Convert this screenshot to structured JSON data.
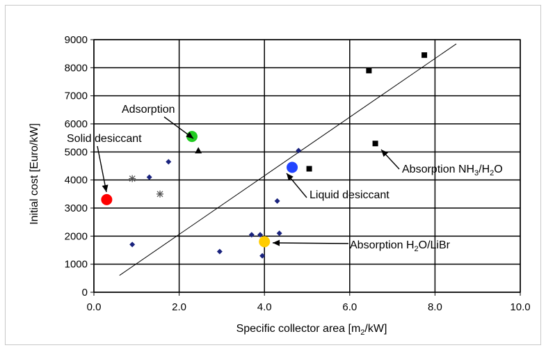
{
  "chart_data": {
    "type": "scatter",
    "xlabel": "Specific collector area [m2/kW]",
    "xlabel_parts": {
      "pre": "Specific collector area [m",
      "sub": "2",
      "post": "/kW]"
    },
    "ylabel": "Initial cost [Euro/kW]",
    "xlim": [
      0,
      10
    ],
    "ylim": [
      0,
      9000
    ],
    "x_ticks": [
      "0.0",
      "2.0",
      "4.0",
      "6.0",
      "8.0",
      "10.0"
    ],
    "y_ticks": [
      "0",
      "1000",
      "2000",
      "3000",
      "4000",
      "5000",
      "6000",
      "7000",
      "8000",
      "9000"
    ],
    "grid": true,
    "trend_line": {
      "x": [
        0.6,
        8.5
      ],
      "y": [
        600,
        8850
      ]
    },
    "series": [
      {
        "name": "",
        "marker": "diamond",
        "color": "#1a237e",
        "x": [
          0.9,
          1.3,
          1.75,
          2.95,
          3.7,
          3.9,
          3.95,
          4.3,
          4.35,
          4.8
        ],
        "y": [
          1700,
          4100,
          4650,
          1450,
          2050,
          2050,
          1300,
          3250,
          2100,
          5050
        ]
      },
      {
        "name": "",
        "marker": "star",
        "color": "#555555",
        "x": [
          0.9,
          1.55
        ],
        "y": [
          4050,
          3500
        ]
      },
      {
        "name": "",
        "marker": "square",
        "color": "#000000",
        "x": [
          5.05,
          6.45,
          6.6,
          7.75
        ],
        "y": [
          4400,
          7900,
          5300,
          8450
        ]
      },
      {
        "name": "",
        "marker": "triangle",
        "color": "#000000",
        "x": [
          2.45
        ],
        "y": [
          5050
        ]
      },
      {
        "name": "Solid desiccant",
        "marker": "circle",
        "color": "#ff0000",
        "x": [
          0.3
        ],
        "y": [
          3300
        ]
      },
      {
        "name": "Adsorption",
        "marker": "circle",
        "color": "#22cc22",
        "x": [
          2.3
        ],
        "y": [
          5550
        ]
      },
      {
        "name": "Liquid desiccant",
        "marker": "circle",
        "color": "#2244ff",
        "x": [
          4.65
        ],
        "y": [
          4450
        ]
      },
      {
        "name": "Absorption H2O/LiBr",
        "marker": "circle",
        "color": "#ffcc00",
        "x": [
          4.0
        ],
        "y": [
          1800
        ]
      }
    ],
    "annotations": {
      "adsorption": "Adsorption",
      "solid_desiccant": "Solid desiccant",
      "liquid_desiccant": "Liquid desiccant",
      "abs_nh3": {
        "p1": "Absorption NH",
        "s1": "3",
        "p2": "/H",
        "s2": "2",
        "p3": "O"
      },
      "abs_libr": {
        "p1": "Absorption H",
        "s1": "2",
        "p2": "O/LiBr"
      }
    }
  }
}
